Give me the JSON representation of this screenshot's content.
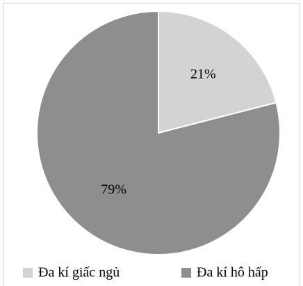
{
  "chart_data": {
    "type": "pie",
    "categories": [
      "Đa kí giấc ngủ",
      "Đa kí hô hấp"
    ],
    "values": [
      21,
      79
    ],
    "value_labels": [
      "21%",
      "79%"
    ],
    "colors": [
      "#d3d3d3",
      "#8e8e8e"
    ],
    "legend": "bottom"
  }
}
